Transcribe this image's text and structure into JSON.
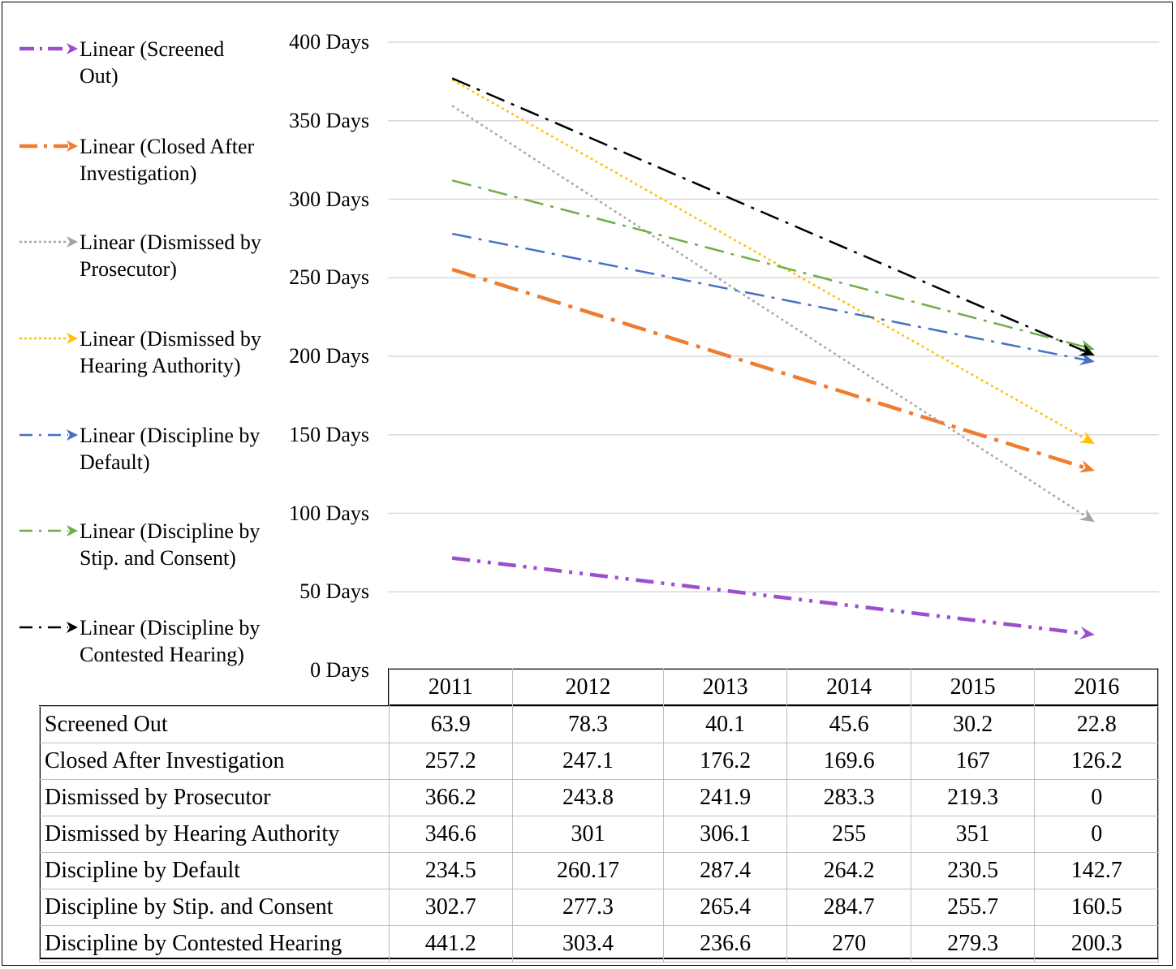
{
  "chart_data": {
    "type": "line",
    "subtype": "linear trendlines with data table",
    "title": "",
    "xlabel": "",
    "ylabel": "",
    "categories": [
      "2011",
      "2012",
      "2013",
      "2014",
      "2015",
      "2016"
    ],
    "y_ticks": [
      "0 Days",
      "50 Days",
      "100 Days",
      "150 Days",
      "200 Days",
      "250 Days",
      "300 Days",
      "350 Days",
      "400 Days"
    ],
    "ylim": [
      0,
      400
    ],
    "grid": true,
    "legend_position": "left",
    "series": [
      {
        "name": "Screened Out",
        "legend": "Linear (Screened Out)",
        "color": "#9b4fcf",
        "dash": "dash-dot-dot",
        "trend": [
          71.5,
          22.7
        ],
        "values": [
          "63.9",
          "78.3",
          "40.1",
          "45.6",
          "30.2",
          "22.8"
        ]
      },
      {
        "name": "Closed After Investigation",
        "legend": "Linear (Closed After Investigation)",
        "color": "#ed7d31",
        "dash": "long-dash-dot",
        "trend": [
          255.3,
          127.1
        ],
        "values": [
          "257.2",
          "247.1",
          "176.2",
          "169.6",
          "167",
          "126.2"
        ]
      },
      {
        "name": "Dismissed by Prosecutor",
        "legend": "Linear (Dismissed by Prosecutor)",
        "color": "#a5a5a5",
        "dash": "dotted",
        "trend": [
          359.5,
          94.4
        ],
        "values": [
          "366.2",
          "243.8",
          "241.9",
          "283.3",
          "219.3",
          "0"
        ]
      },
      {
        "name": "Dismissed by Hearing Authority",
        "legend": "Linear (Dismissed by Hearing Authority)",
        "color": "#ffc000",
        "dash": "dotted",
        "trend": [
          376.0,
          144.1
        ],
        "values": [
          "346.6",
          "301",
          "306.1",
          "255",
          "351",
          "0"
        ]
      },
      {
        "name": "Discipline by Default",
        "legend": "Linear (Discipline by Default)",
        "color": "#4472c4",
        "dash": "dash-dot",
        "trend": [
          278.0,
          196.5
        ],
        "values": [
          "234.5",
          "260.17",
          "287.4",
          "264.2",
          "230.5",
          "142.7"
        ]
      },
      {
        "name": "Discipline by Stip. and Consent",
        "legend": "Linear (Discipline by Stip. and Consent)",
        "color": "#70ad47",
        "dash": "dash-dot",
        "trend": [
          312.0,
          204.3
        ],
        "values": [
          "302.7",
          "277.3",
          "265.4",
          "284.7",
          "255.7",
          "160.5"
        ]
      },
      {
        "name": "Discipline by Contested Hearing",
        "legend": "Linear (Discipline by Contested Hearing)",
        "color": "#000000",
        "dash": "dash-dot",
        "trend": [
          377.0,
          200.5
        ],
        "values": [
          "441.2",
          "303.4",
          "236.6",
          "270",
          "279.3",
          "200.3"
        ]
      }
    ]
  }
}
